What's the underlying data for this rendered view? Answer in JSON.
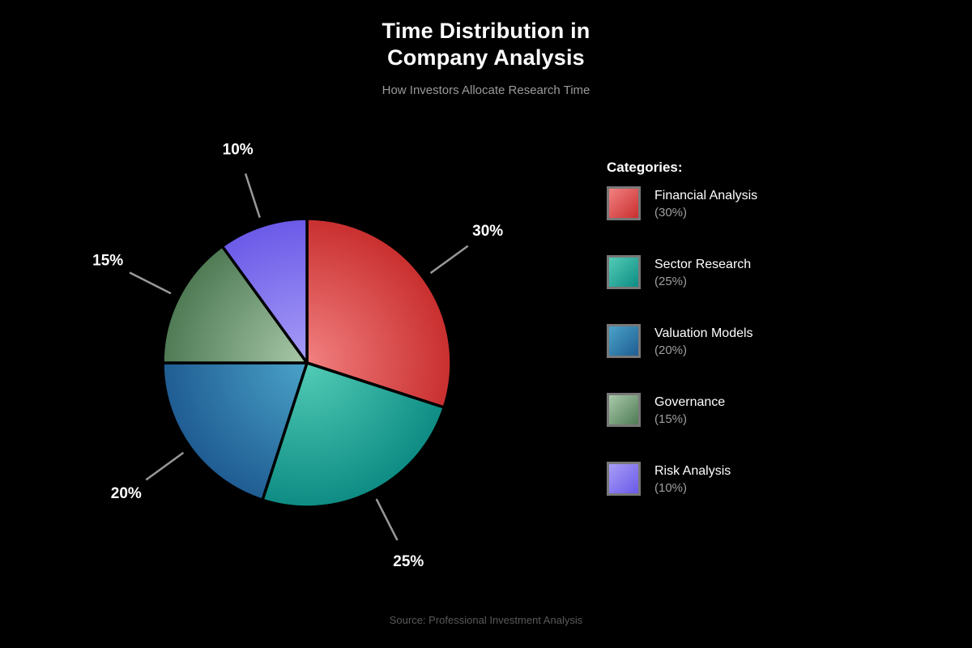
{
  "header": {
    "title_line1": "Time Distribution in",
    "title_line2": "Company Analysis",
    "subtitle": "How Investors Allocate Research Time"
  },
  "legend": {
    "heading": "Categories:"
  },
  "footer": {
    "source": "Source: Professional Investment Analysis"
  },
  "chart_data": {
    "type": "pie",
    "title": "Time Distribution in Company Analysis",
    "subtitle": "How Investors Allocate Research Time",
    "source": "Source: Professional Investment Analysis",
    "unit": "%",
    "start_angle_deg": 90,
    "direction": "clockwise",
    "legend_position": "right",
    "legend_heading": "Categories:",
    "categories": [
      "Financial Analysis",
      "Sector Research",
      "Valuation Models",
      "Governance",
      "Risk Analysis"
    ],
    "values": [
      30,
      25,
      20,
      15,
      10
    ],
    "slices": [
      {
        "label": "Financial Analysis",
        "value": 30,
        "color_light": "#f28080",
        "color_dark": "#c92f2f"
      },
      {
        "label": "Sector Research",
        "value": 25,
        "color_light": "#52ccb6",
        "color_dark": "#0e8c84"
      },
      {
        "label": "Valuation Models",
        "value": 20,
        "color_light": "#4aa3c9",
        "color_dark": "#1f5c92"
      },
      {
        "label": "Governance",
        "value": 15,
        "color_light": "#a9c9a9",
        "color_dark": "#4e7a54"
      },
      {
        "label": "Risk Analysis",
        "value": 10,
        "color_light": "#a89df7",
        "color_dark": "#6a5ae8"
      }
    ],
    "style": {
      "background": "#000000",
      "slice_divider_color": "#000000",
      "leader_line_color": "#999999",
      "pct_label_color": "#ffffff",
      "title_color": "#ffffff",
      "subtitle_color": "#9a9a9a",
      "legend_label_color": "#ffffff",
      "legend_note_color": "#9f9f9f",
      "source_color": "#595959"
    }
  }
}
